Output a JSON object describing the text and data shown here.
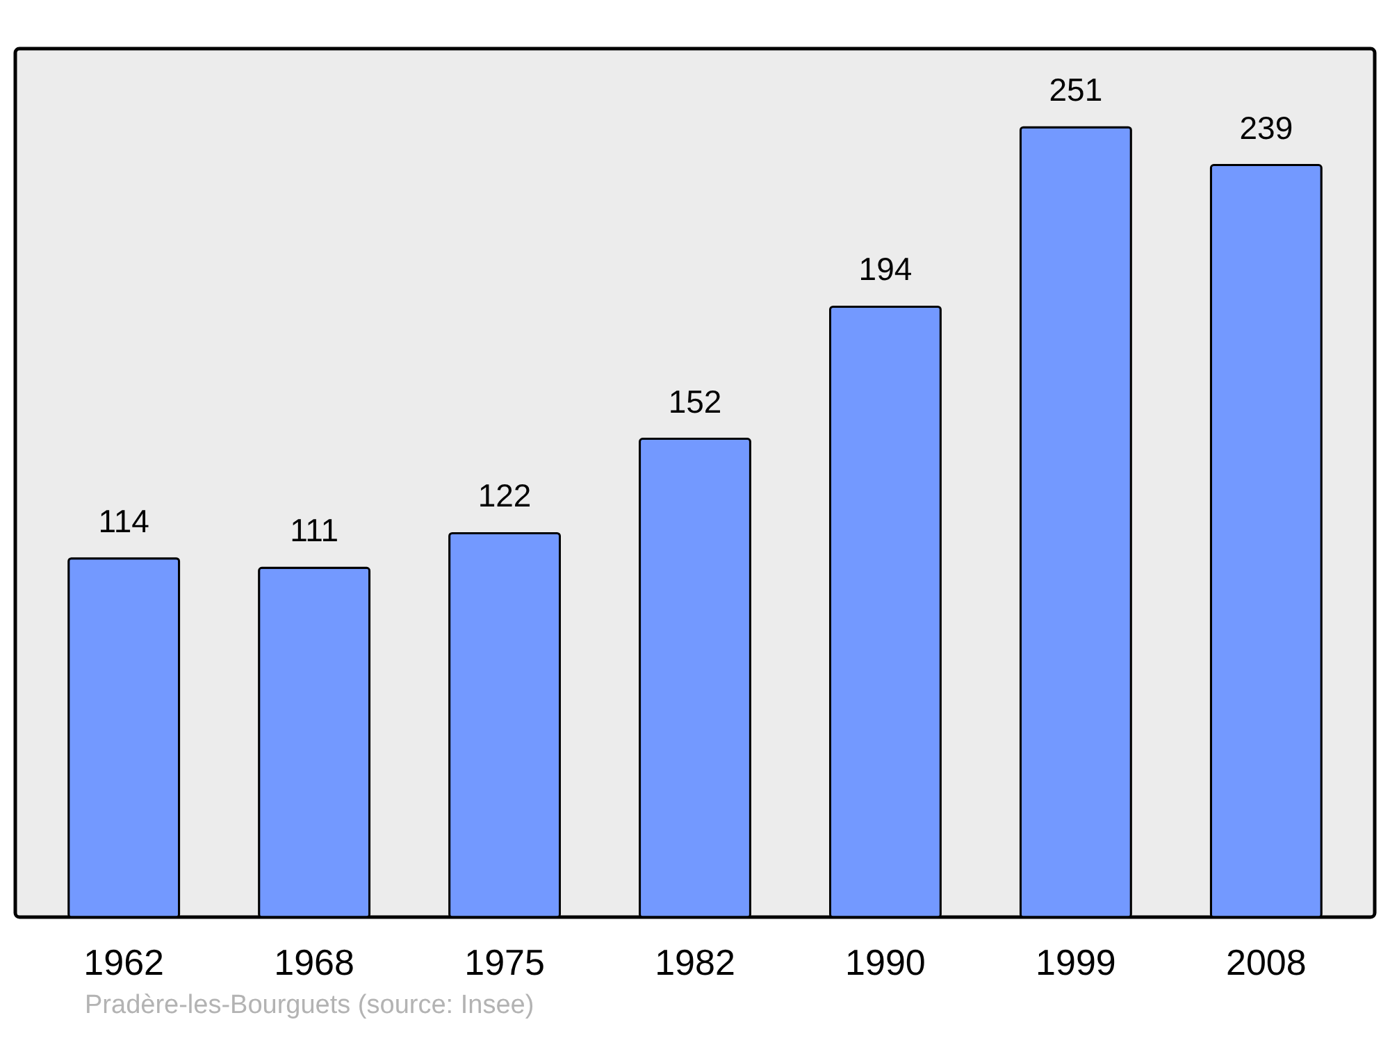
{
  "chart_data": {
    "type": "bar",
    "categories": [
      "1962",
      "1968",
      "1975",
      "1982",
      "1990",
      "1999",
      "2008"
    ],
    "values": [
      114,
      111,
      122,
      152,
      194,
      251,
      239
    ],
    "color": "#7399ff",
    "ylim": [
      0,
      276
    ],
    "data_labels": true,
    "annotations": [
      "Pradère-les-Bourguets    (source: Insee)"
    ]
  }
}
